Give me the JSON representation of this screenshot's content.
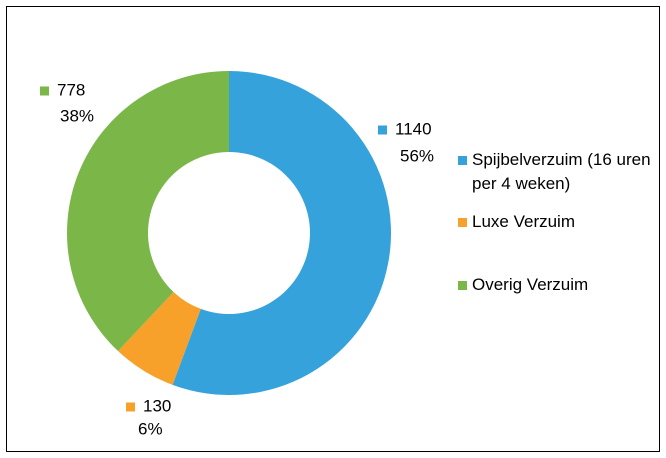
{
  "chart_data": {
    "type": "donut",
    "categories": [
      "Spijbelverzuim (16 uren per 4 weken)",
      "Luxe Verzuim",
      "Overig Verzuim"
    ],
    "values": [
      1140,
      130,
      778
    ],
    "percent_labels": [
      "56%",
      "6%",
      "38%"
    ],
    "colors": [
      "#35a2dc",
      "#f7a02a",
      "#7ab648"
    ],
    "legend": "right"
  }
}
